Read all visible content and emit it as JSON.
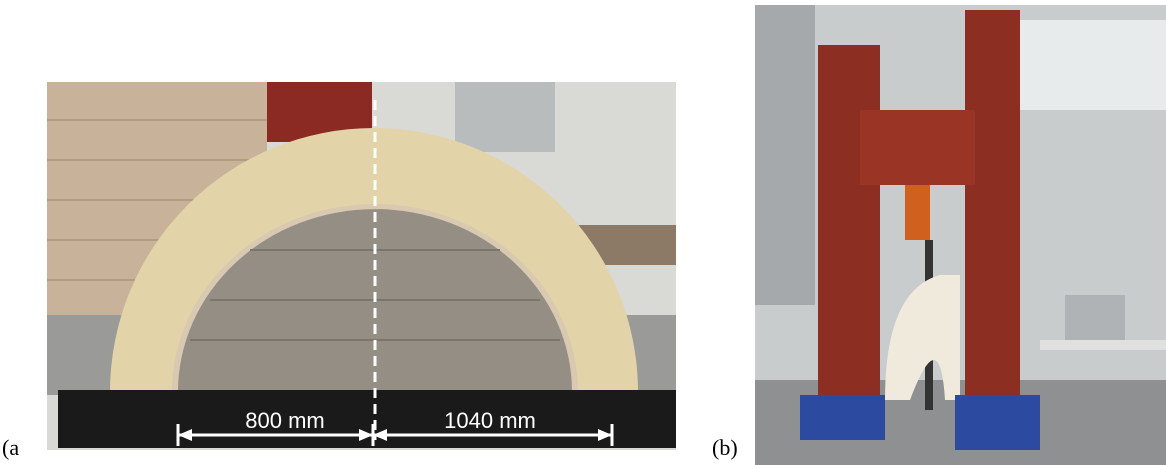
{
  "panels": [
    {
      "label": "(a",
      "annotations": [
        "800 mm",
        "1040 mm"
      ]
    },
    {
      "label": "(b)"
    }
  ]
}
